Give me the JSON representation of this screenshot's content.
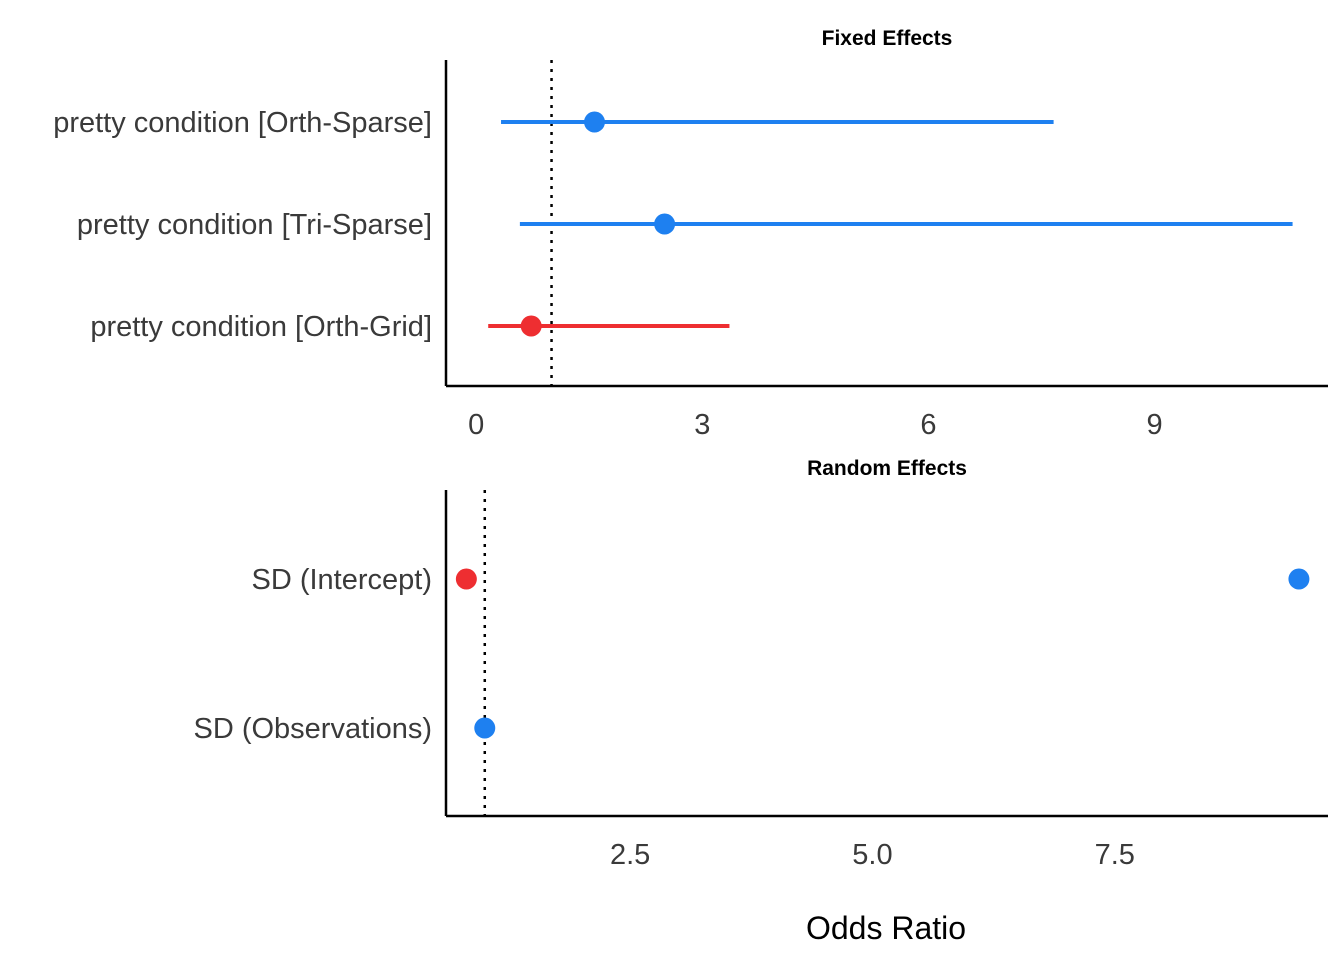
{
  "colors": {
    "positive": "#1E80F0",
    "negative": "#EE2E31",
    "reference": "#000000"
  },
  "xlabel": "Odds Ratio",
  "chart_data": [
    {
      "type": "forest",
      "title": "Fixed Effects",
      "xlim": [
        -0.4,
        11.3
      ],
      "xticks": [
        0,
        3,
        6,
        9
      ],
      "xtick_labels": [
        "0",
        "3",
        "6",
        "9"
      ],
      "reference_line": 1,
      "terms": [
        {
          "label": "pretty condition [Orth-Sparse]",
          "estimate": 1.57,
          "ci_low": 0.33,
          "ci_high": 7.66,
          "color": "positive"
        },
        {
          "label": "pretty condition [Tri-Sparse]",
          "estimate": 2.5,
          "ci_low": 0.58,
          "ci_high": 10.83,
          "color": "positive"
        },
        {
          "label": "pretty condition [Orth-Grid]",
          "estimate": 0.73,
          "ci_low": 0.16,
          "ci_high": 3.36,
          "color": "negative"
        }
      ]
    },
    {
      "type": "forest",
      "title": "Random Effects",
      "xlim": [
        0.6,
        9.7
      ],
      "xticks": [
        2.5,
        5.0,
        7.5
      ],
      "xtick_labels": [
        "2.5",
        "5.0",
        "7.5"
      ],
      "reference_line": 1,
      "terms": [
        {
          "label": "SD (Intercept)",
          "estimate": 0.81,
          "color": "negative"
        },
        {
          "label": "SD (Observations)",
          "estimate": 1.0,
          "color": "positive"
        }
      ]
    },
    {
      "type": "forest-extra",
      "note": "second random-effect point",
      "terms": [
        {
          "label": "SD (Intercept)",
          "estimate": 9.4,
          "color": "positive"
        }
      ]
    }
  ]
}
